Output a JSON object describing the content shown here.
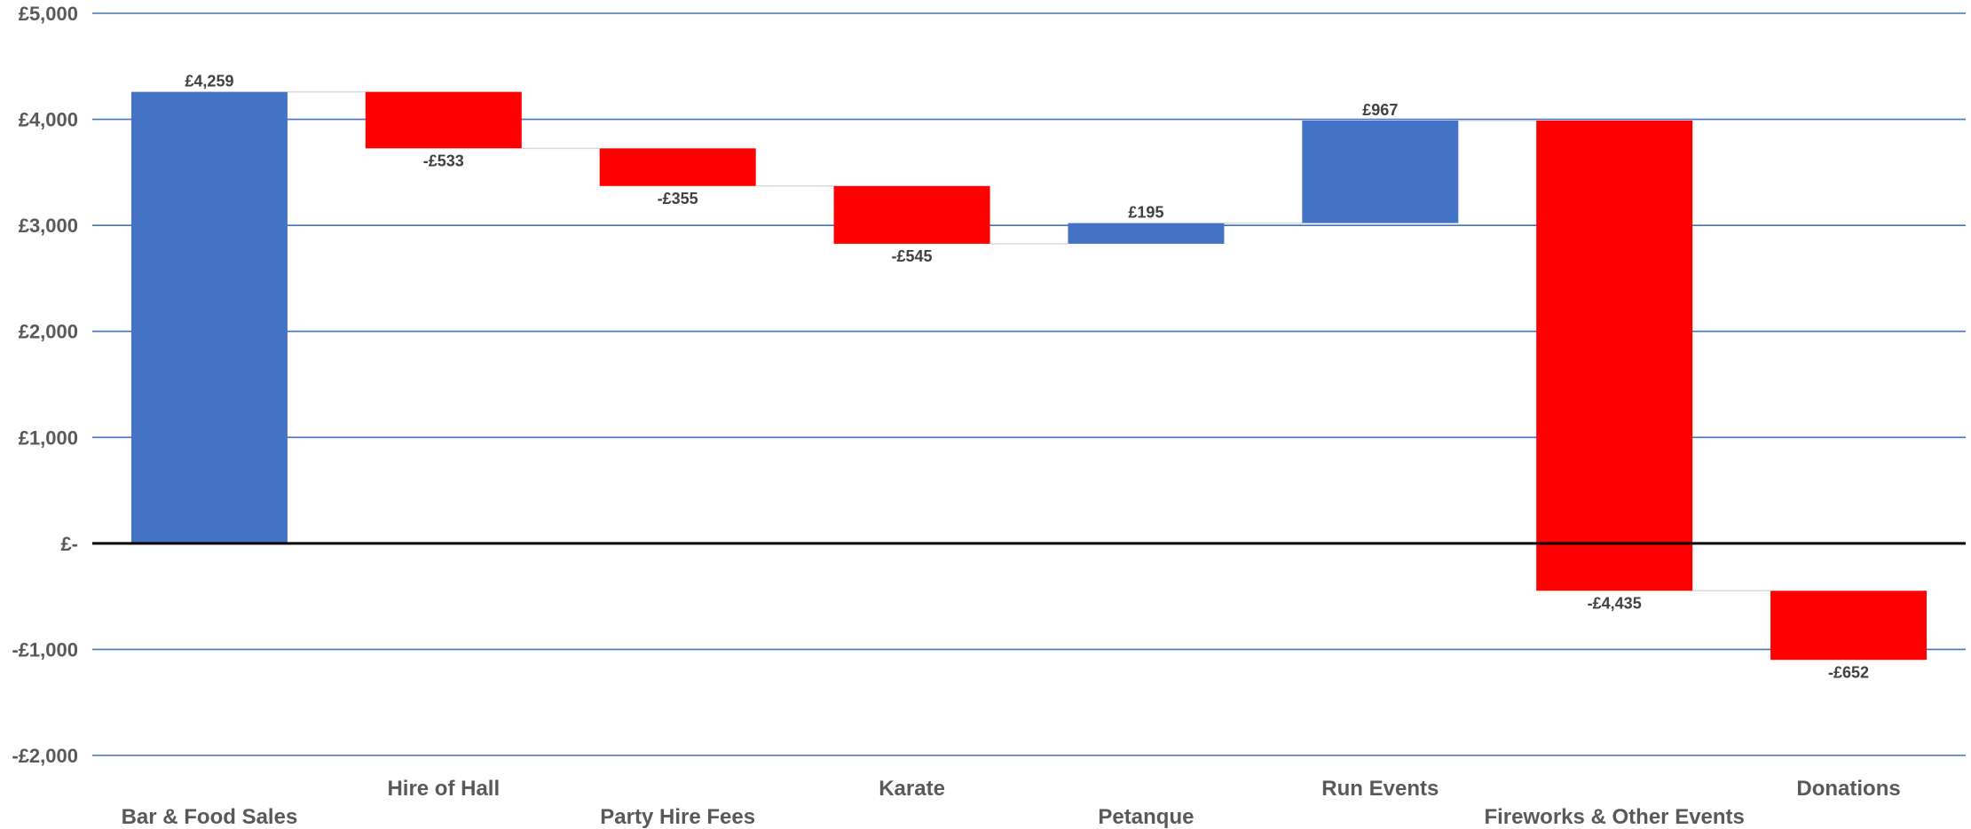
{
  "chart_data": {
    "type": "bar",
    "subtype": "waterfall",
    "categories": [
      "Bar & Food Sales",
      "Hire of Hall",
      "Party Hire Fees",
      "Karate",
      "Petanque",
      "Run Events",
      "Fireworks & Other Events",
      "Donations"
    ],
    "values": [
      4259,
      -533,
      -355,
      -545,
      195,
      967,
      -4435,
      -652
    ],
    "value_labels": [
      "£4,259",
      "-£533",
      "-£355",
      "-£545",
      "£195",
      "£967",
      "-£4,435",
      "-£652"
    ],
    "ylim": [
      -2000,
      5000
    ],
    "yticks": [
      5000,
      4000,
      3000,
      2000,
      1000,
      0,
      -1000,
      -2000
    ],
    "ytick_labels": [
      "£5,000",
      "£4,000",
      "£3,000",
      "£2,000",
      "£1,000",
      "£-",
      "-£1,000",
      "-£2,000"
    ],
    "grid": true,
    "legend": "none",
    "colors": {
      "increase": "#4472C4",
      "decrease": "#FF0000",
      "gridline": "#4472C4",
      "zero_line": "#000000",
      "connector": "#D9D9D9",
      "axis_text": "#595959",
      "label_text": "#404040"
    }
  }
}
